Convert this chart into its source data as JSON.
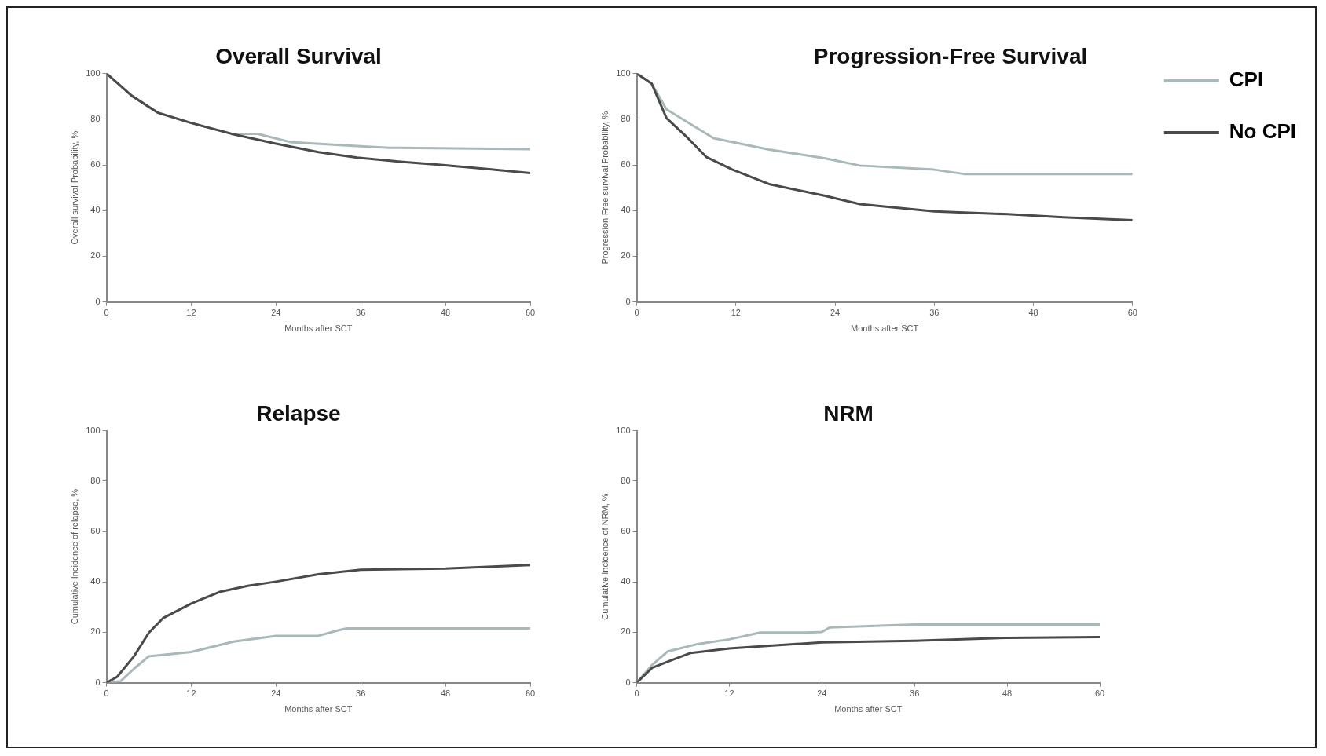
{
  "chart_data": [
    {
      "type": "line",
      "title": "Overall Survival",
      "xlabel": "Months after SCT",
      "ylabel": "Overall survival Probability, %",
      "xlim": [
        0,
        60
      ],
      "xticks": [
        0,
        12,
        24,
        36,
        48,
        60
      ],
      "ylim": [
        0,
        100
      ],
      "yticks": [
        0,
        20,
        40,
        60,
        80,
        100
      ],
      "grid": false,
      "legend": false,
      "marker": "none",
      "series": [
        {
          "color": "#a9b8b8",
          "x": [
            0,
            3.6,
            7.3,
            11.8,
            17.7,
            21.4,
            26,
            33,
            40,
            60
          ],
          "values": [
            100,
            90.2,
            82.8,
            78.5,
            73.6,
            73.6,
            70,
            68.7,
            67.5,
            66.9
          ]
        },
        {
          "color": "#4a4a4a",
          "x": [
            0,
            3.6,
            7.3,
            11.8,
            17.7,
            24,
            30,
            35.5,
            42,
            47,
            53.6,
            60
          ],
          "values": [
            100,
            90.2,
            82.8,
            78.5,
            73.6,
            69.3,
            65.6,
            63.2,
            61.3,
            60.1,
            58.3,
            56.4
          ]
        }
      ]
    },
    {
      "type": "line",
      "title": "Progression-Free Survival",
      "xlabel": "Months after SCT",
      "ylabel": "Progression-Free survival Probability, %",
      "xlim": [
        0,
        60
      ],
      "xticks": [
        0,
        12,
        24,
        36,
        48,
        60
      ],
      "ylim": [
        0,
        100
      ],
      "yticks": [
        0,
        20,
        40,
        60,
        80,
        100
      ],
      "grid": false,
      "legend": "right",
      "marker": "none",
      "series": [
        {
          "name": "CPI",
          "color": "#a9b8b8",
          "x": [
            0,
            1.8,
            3.6,
            9.3,
            16,
            22.7,
            27,
            36,
            39.6,
            60
          ],
          "values": [
            100,
            95.6,
            84.3,
            71.7,
            66.7,
            62.9,
            59.7,
            57.9,
            56,
            56
          ]
        },
        {
          "name": "No CPI",
          "color": "#4a4a4a",
          "x": [
            0,
            1.8,
            3.6,
            6.2,
            8.4,
            11.6,
            16,
            22.7,
            27,
            36,
            44.9,
            51.6,
            60
          ],
          "values": [
            100,
            95.6,
            80.5,
            71.7,
            63.5,
            57.9,
            51.6,
            46.5,
            42.8,
            39.6,
            38.4,
            37.1,
            35.8
          ]
        }
      ]
    },
    {
      "type": "line",
      "title": "Relapse",
      "xlabel": "Months after SCT",
      "ylabel": "Cumulative Incidence of relapse, %",
      "xlim": [
        0,
        60
      ],
      "xticks": [
        0,
        12,
        24,
        36,
        48,
        60
      ],
      "ylim": [
        0,
        100
      ],
      "yticks": [
        0,
        20,
        40,
        60,
        80,
        100
      ],
      "grid": false,
      "legend": false,
      "marker": "none",
      "series": [
        {
          "color": "#a9b8b8",
          "x": [
            0,
            2,
            4,
            6,
            12,
            18,
            24,
            30,
            33,
            34,
            60
          ],
          "values": [
            0,
            0.6,
            5.8,
            10.5,
            12.2,
            16.3,
            18.6,
            18.6,
            20.9,
            21.5,
            21.5
          ]
        },
        {
          "color": "#4a4a4a",
          "x": [
            0,
            1.5,
            3.9,
            6,
            8,
            12,
            16,
            20,
            24,
            30,
            36,
            48,
            60
          ],
          "values": [
            0,
            2.3,
            10.5,
            19.8,
            25.6,
            31.4,
            36,
            38.4,
            40.1,
            43,
            44.8,
            45.3,
            46.7
          ]
        }
      ]
    },
    {
      "type": "line",
      "title": "NRM",
      "xlabel": "Months after SCT",
      "ylabel": "Cumulative Incidence of NRM, %",
      "xlim": [
        0,
        60
      ],
      "xticks": [
        0,
        12,
        24,
        36,
        48,
        60
      ],
      "ylim": [
        0,
        100
      ],
      "yticks": [
        0,
        20,
        40,
        60,
        80,
        100
      ],
      "grid": false,
      "legend": false,
      "marker": "none",
      "series": [
        {
          "color": "#a9b8b8",
          "x": [
            0,
            2,
            4,
            8,
            12,
            16,
            22,
            24,
            25,
            36,
            60
          ],
          "values": [
            0,
            7.1,
            12.4,
            15.4,
            17.2,
            19.9,
            19.9,
            20.1,
            21.9,
            23.1,
            23.1
          ]
        },
        {
          "color": "#4a4a4a",
          "x": [
            0,
            2,
            4,
            7,
            12,
            18,
            24,
            36,
            48,
            60
          ],
          "values": [
            0,
            5.9,
            8.3,
            11.8,
            13.6,
            14.8,
            16,
            16.6,
            17.8,
            18.1
          ]
        }
      ]
    }
  ]
}
